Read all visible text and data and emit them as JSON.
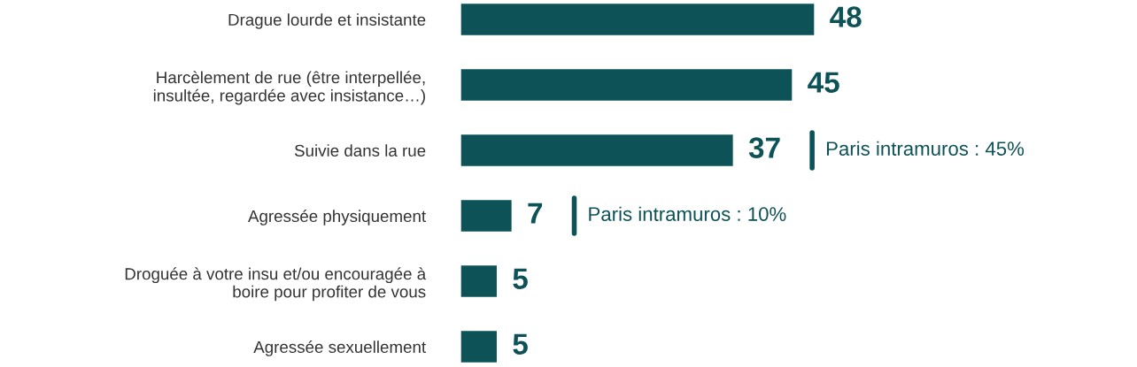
{
  "chart_data": {
    "type": "bar",
    "orientation": "horizontal",
    "categories": [
      "Drague lourde et insistante",
      "Harcèlement de rue (être interpellée,\ninsultée, regardée avec insistance…)",
      "Suivie dans la rue",
      "Agressée physiquement",
      "Droguée à votre insu et/ou encouragée à\nboire pour profiter de vous",
      "Agressée sexuellement"
    ],
    "values": [
      48,
      45,
      37,
      7,
      5,
      5
    ],
    "color": "#0d5257",
    "data_labels": true,
    "grid": false,
    "legend": false,
    "annotations": [
      "Paris intramuros : 45%",
      "Paris intramuros : 10%"
    ]
  }
}
